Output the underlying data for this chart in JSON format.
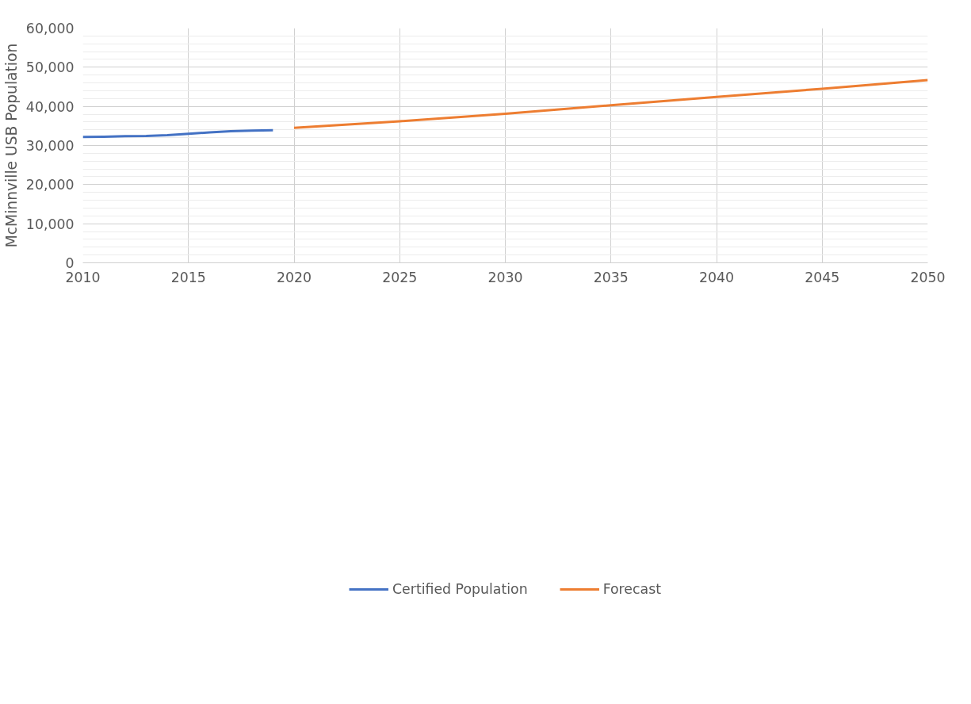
{
  "chart_data": {
    "type": "line",
    "ylabel": "McMinnville USB Population",
    "series": [
      {
        "name": "Certified Population",
        "color": "#4472c4",
        "x": [
          2010,
          2011,
          2012,
          2013,
          2014,
          2015,
          2016,
          2017,
          2018,
          2019
        ],
        "values": [
          32200,
          32250,
          32400,
          32450,
          32650,
          33000,
          33350,
          33650,
          33800,
          33900
        ]
      },
      {
        "name": "Forecast",
        "color": "#ed7d31",
        "x": [
          2020,
          2025,
          2030,
          2035,
          2040,
          2045,
          2050
        ],
        "values": [
          34500,
          36200,
          38100,
          40300,
          42400,
          44500,
          46700
        ]
      }
    ],
    "xlim": [
      2010,
      2050
    ],
    "xticks": [
      2010,
      2015,
      2020,
      2025,
      2030,
      2035,
      2040,
      2045,
      2050
    ],
    "ylim": [
      0,
      60000
    ],
    "yticks": [
      {
        "value": 0,
        "label": "0"
      },
      {
        "value": 10000,
        "label": "10,000"
      },
      {
        "value": 20000,
        "label": "20,000"
      },
      {
        "value": 30000,
        "label": "30,000"
      },
      {
        "value": 40000,
        "label": "40,000"
      },
      {
        "value": 50000,
        "label": "50,000"
      },
      {
        "value": 60000,
        "label": "60,000"
      }
    ],
    "grid": true,
    "legend": "bottom",
    "marker": "none",
    "line_style": "solid"
  }
}
